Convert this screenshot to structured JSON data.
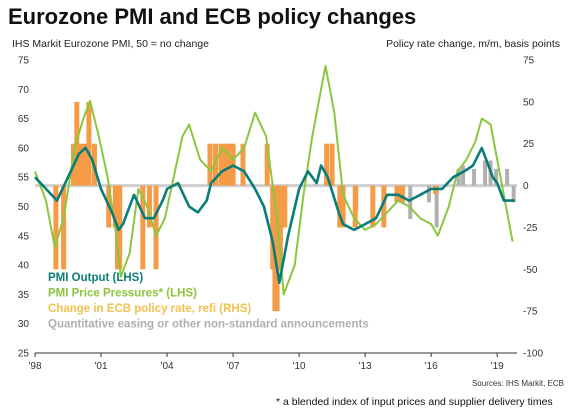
{
  "title": "Eurozone PMI and ECB policy changes",
  "left_axis_title": "IHS Markit Eurozone PMI, 50 = no change",
  "right_axis_title": "Policy rate change, m/m, basis points",
  "source": "Sources: IHS Markit, ECB",
  "footnote": "* a blended index of input prices and supplier delivery times",
  "colors": {
    "pmi_output": "#0a7d78",
    "price_pressures": "#8cc63f",
    "ecb_change": "#f59a45",
    "qe": "#b0b0b0",
    "legend_ecb_text": "#f2c14e"
  },
  "chart_data": {
    "type": "line",
    "x_ticks": [
      "'98",
      "'01",
      "'04",
      "'07",
      "'10",
      "'13",
      "'16",
      "'19"
    ],
    "x_tick_years": [
      1998,
      2001,
      2004,
      2007,
      2010,
      2013,
      2016,
      2019
    ],
    "xlim": [
      1998,
      2019.9
    ],
    "ylim_left": [
      25,
      75
    ],
    "ylim_right": [
      -100,
      75
    ],
    "yticks_left": [
      25,
      30,
      35,
      40,
      45,
      50,
      55,
      60,
      65,
      70,
      75
    ],
    "yticks_right": [
      -100,
      -75,
      -50,
      -25,
      0,
      25,
      50,
      75
    ],
    "legend_entries": [
      "PMI  Output (LHS)",
      "PMI Price Pressures* (LHS)",
      "Change in ECB policy rate, refi (RHS)",
      "Quantitative easing or other non-standard announcements"
    ],
    "series": [
      {
        "name": "PMI  Output (LHS)",
        "axis": "left",
        "x": [
          1998.0,
          1998.5,
          1999.0,
          1999.5,
          2000.0,
          2000.3,
          2000.6,
          2001.0,
          2001.5,
          2001.8,
          2002.0,
          2002.5,
          2003.0,
          2003.4,
          2003.8,
          2004.0,
          2004.5,
          2005.0,
          2005.4,
          2005.8,
          2006.0,
          2006.5,
          2007.0,
          2007.5,
          2008.0,
          2008.4,
          2008.8,
          2009.1,
          2009.5,
          2010.0,
          2010.4,
          2010.8,
          2011.0,
          2011.3,
          2011.8,
          2012.0,
          2012.5,
          2013.0,
          2013.5,
          2014.0,
          2014.5,
          2015.0,
          2015.5,
          2016.0,
          2016.5,
          2017.0,
          2017.5,
          2017.9,
          2018.3,
          2018.8,
          2019.0,
          2019.3,
          2019.6,
          2019.8
        ],
        "y": [
          55,
          53,
          51,
          55,
          59,
          60,
          58,
          53,
          49,
          46,
          47,
          52,
          48,
          48,
          51,
          53,
          54,
          50,
          49,
          51,
          54,
          56,
          57,
          56,
          53,
          50,
          44,
          37,
          45,
          53,
          56,
          54,
          57,
          55,
          49,
          47,
          46,
          47,
          48,
          52,
          52,
          51,
          52,
          53,
          53,
          55,
          56,
          57,
          60,
          55,
          54,
          51,
          51,
          51
        ]
      },
      {
        "name": "PMI Price Pressures* (LHS)",
        "axis": "left",
        "x": [
          1998.0,
          1998.5,
          1998.9,
          1999.3,
          1999.8,
          2000.2,
          2000.5,
          2000.9,
          2001.3,
          2001.7,
          2001.9,
          2002.3,
          2002.7,
          2003.1,
          2003.5,
          2003.9,
          2004.3,
          2004.7,
          2005.0,
          2005.5,
          2006.0,
          2006.5,
          2007.0,
          2007.5,
          2008.0,
          2008.5,
          2009.0,
          2009.3,
          2009.8,
          2010.2,
          2010.6,
          2011.0,
          2011.2,
          2011.6,
          2012.0,
          2012.5,
          2013.0,
          2013.5,
          2014.0,
          2014.5,
          2015.0,
          2015.5,
          2016.0,
          2016.3,
          2016.8,
          2017.2,
          2017.6,
          2018.0,
          2018.3,
          2018.7,
          2019.0,
          2019.3,
          2019.7
        ],
        "y": [
          56,
          51,
          43,
          48,
          60,
          65,
          68,
          62,
          55,
          45,
          38,
          42,
          53,
          50,
          45,
          48,
          55,
          62,
          64,
          58,
          56,
          60,
          58,
          60,
          66,
          62,
          48,
          35,
          40,
          52,
          62,
          70,
          74,
          66,
          52,
          48,
          46,
          47,
          49,
          51,
          50,
          48,
          47,
          45,
          50,
          56,
          58,
          61,
          65,
          64,
          58,
          52,
          44
        ]
      }
    ],
    "ecb_bars": [
      {
        "x": 1998.95,
        "bp": -50
      },
      {
        "x": 1999.3,
        "bp": -50
      },
      {
        "x": 1999.75,
        "bp": 25
      },
      {
        "x": 1999.9,
        "bp": 50
      },
      {
        "x": 2000.1,
        "bp": 25
      },
      {
        "x": 2000.25,
        "bp": 25
      },
      {
        "x": 2000.45,
        "bp": 50
      },
      {
        "x": 2000.7,
        "bp": 25
      },
      {
        "x": 2001.35,
        "bp": -25
      },
      {
        "x": 2001.65,
        "bp": -25
      },
      {
        "x": 2001.75,
        "bp": -50
      },
      {
        "x": 2001.85,
        "bp": -50
      },
      {
        "x": 2002.9,
        "bp": -50
      },
      {
        "x": 2003.2,
        "bp": -25
      },
      {
        "x": 2003.5,
        "bp": -50
      },
      {
        "x": 2005.95,
        "bp": 25
      },
      {
        "x": 2006.2,
        "bp": 25
      },
      {
        "x": 2006.45,
        "bp": 25
      },
      {
        "x": 2006.6,
        "bp": 25
      },
      {
        "x": 2006.8,
        "bp": 25
      },
      {
        "x": 2007.0,
        "bp": 25
      },
      {
        "x": 2007.45,
        "bp": 25
      },
      {
        "x": 2008.55,
        "bp": 25
      },
      {
        "x": 2008.8,
        "bp": -50
      },
      {
        "x": 2008.9,
        "bp": -75
      },
      {
        "x": 2009.0,
        "bp": -75
      },
      {
        "x": 2009.15,
        "bp": -50
      },
      {
        "x": 2009.35,
        "bp": -25
      },
      {
        "x": 2011.25,
        "bp": 25
      },
      {
        "x": 2011.5,
        "bp": 25
      },
      {
        "x": 2011.85,
        "bp": -25
      },
      {
        "x": 2012.0,
        "bp": -25
      },
      {
        "x": 2012.55,
        "bp": -25
      },
      {
        "x": 2013.35,
        "bp": -25
      },
      {
        "x": 2013.85,
        "bp": -25
      },
      {
        "x": 2014.45,
        "bp": -10
      },
      {
        "x": 2014.7,
        "bp": -10
      },
      {
        "x": 2016.2,
        "bp": -5
      }
    ],
    "qe_bars": [
      {
        "x": 2011.9,
        "height": -25
      },
      {
        "x": 2012.6,
        "height": -15
      },
      {
        "x": 2014.5,
        "height": -10
      },
      {
        "x": 2014.7,
        "height": -10
      },
      {
        "x": 2015.05,
        "height": -20
      },
      {
        "x": 2015.9,
        "height": -10
      },
      {
        "x": 2016.25,
        "height": -25
      },
      {
        "x": 2017.25,
        "height": 10
      },
      {
        "x": 2017.45,
        "height": 12
      },
      {
        "x": 2017.95,
        "height": 10
      },
      {
        "x": 2018.45,
        "height": 15
      },
      {
        "x": 2018.7,
        "height": 15
      },
      {
        "x": 2018.95,
        "height": 10
      },
      {
        "x": 2019.45,
        "height": 10
      },
      {
        "x": 2019.75,
        "height": -10
      }
    ]
  }
}
